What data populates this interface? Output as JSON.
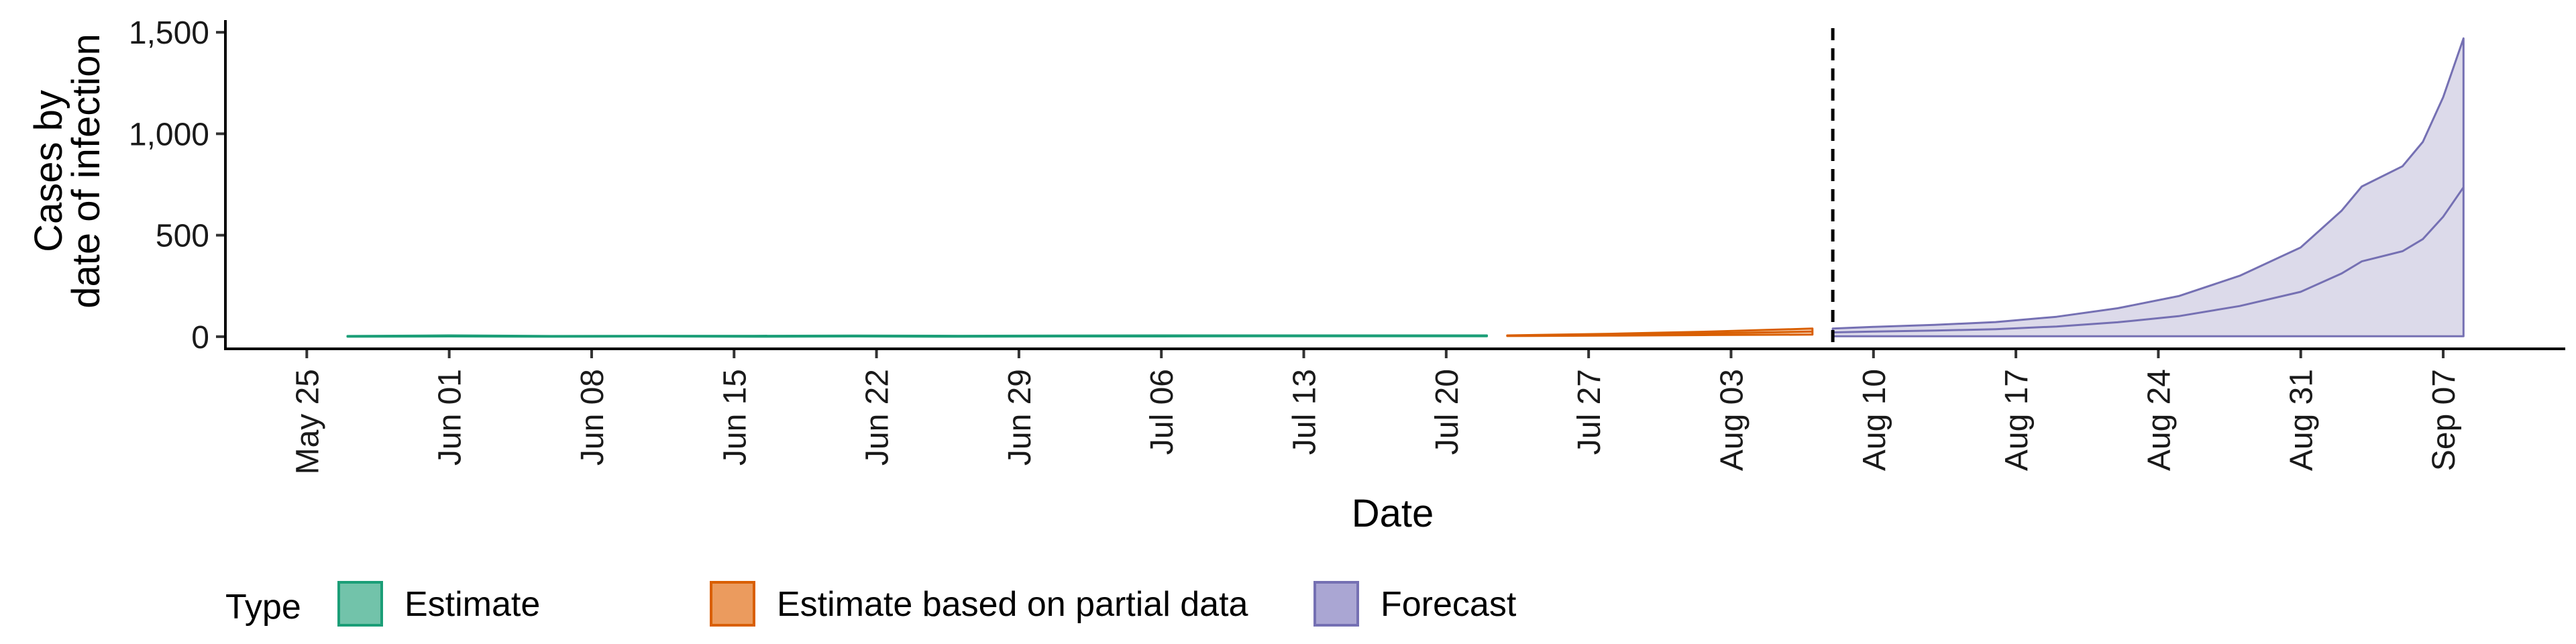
{
  "chart_data": {
    "type": "area",
    "xlabel": "Date",
    "ylabel": [
      "Cases by",
      "date of infection"
    ],
    "x_ticks": [
      "May 25",
      "Jun 01",
      "Jun 08",
      "Jun 15",
      "Jun 22",
      "Jun 29",
      "Jul 06",
      "Jul 13",
      "Jul 20",
      "Jul 27",
      "Aug 03",
      "Aug 10",
      "Aug 17",
      "Aug 24",
      "Aug 31",
      "Sep 07"
    ],
    "y_ticks": [
      0,
      500,
      1000,
      1500
    ],
    "y_tick_labels": [
      "0",
      "500",
      "1,000",
      "1,500"
    ],
    "ylim": [
      -60,
      1560
    ],
    "xlim": [
      "2020-05-21",
      "2020-09-13"
    ],
    "vline_date": "2020-08-08",
    "legend": {
      "title": "Type",
      "position": "bottom",
      "items": [
        {
          "label": "Estimate",
          "fill": "#72c3aa",
          "stroke": "#1b9e77"
        },
        {
          "label": "Estimate based on partial data",
          "fill": "#eb9b5e",
          "stroke": "#d95f02"
        },
        {
          "label": "Forecast",
          "fill": "#aaa6d3",
          "stroke": "#7570b3"
        }
      ]
    },
    "series": [
      {
        "name": "Estimate",
        "color": "#1b9e77",
        "x": [
          "2020-05-27",
          "2020-06-01",
          "2020-06-06",
          "2020-06-11",
          "2020-06-16",
          "2020-06-21",
          "2020-06-26",
          "2020-07-01",
          "2020-07-06",
          "2020-07-11",
          "2020-07-16",
          "2020-07-21",
          "2020-07-22"
        ],
        "lower": [
          0,
          1,
          0,
          1,
          0,
          1,
          0,
          1,
          1,
          2,
          2,
          2,
          2
        ],
        "upper": [
          3,
          6,
          3,
          4,
          4,
          5,
          4,
          5,
          6,
          6,
          6,
          6,
          6
        ]
      },
      {
        "name": "Estimate based on partial data",
        "color": "#d95f02",
        "x": [
          "2020-07-23",
          "2020-07-28",
          "2020-08-02",
          "2020-08-07"
        ],
        "lower": [
          3,
          5,
          8,
          10
        ],
        "upper": [
          6,
          14,
          25,
          40
        ]
      },
      {
        "name": "Forecast",
        "color": "#7570b3",
        "x": [
          "2020-08-08",
          "2020-08-10",
          "2020-08-13",
          "2020-08-16",
          "2020-08-19",
          "2020-08-22",
          "2020-08-25",
          "2020-08-28",
          "2020-08-31",
          "2020-09-02",
          "2020-09-03",
          "2020-09-05",
          "2020-09-06",
          "2020-09-07",
          "2020-09-08"
        ],
        "lower": [
          2,
          2,
          2,
          2,
          2,
          2,
          2,
          2,
          2,
          2,
          2,
          2,
          2,
          2,
          2
        ],
        "upper": [
          40,
          48,
          58,
          72,
          98,
          140,
          200,
          300,
          440,
          620,
          740,
          840,
          960,
          1180,
          1470
        ]
      }
    ]
  }
}
